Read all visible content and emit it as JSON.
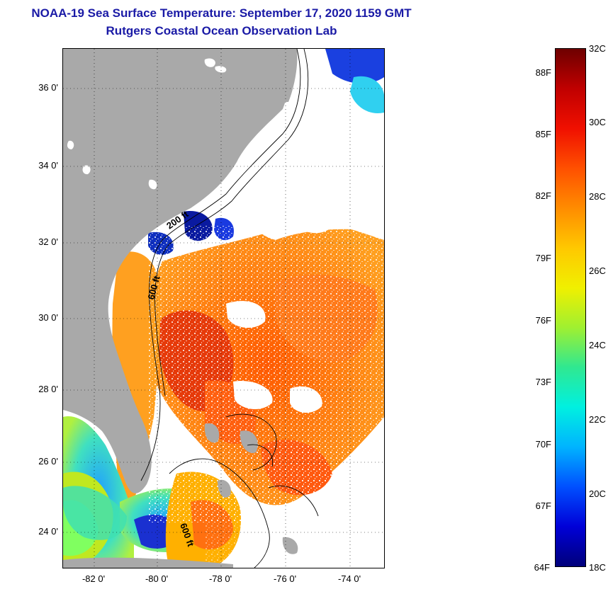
{
  "header": {
    "title": "NOAA-19 Sea Surface Temperature:  September 17, 2020 1159 GMT",
    "subtitle": "Rutgers Coastal Ocean Observation Lab"
  },
  "map": {
    "lat_labels": [
      "36 0'",
      "34 0'",
      "32 0'",
      "30 0'",
      "28 0'",
      "26 0'",
      "24 0'"
    ],
    "lon_labels": [
      "-82 0'",
      "-80 0'",
      "-78 0'",
      "-76 0'",
      "-74 0'"
    ],
    "contour_labels": [
      "200 ft",
      "600 ft",
      "600 ft"
    ],
    "land_color": "#a9a9a9",
    "grid": "dotted"
  },
  "colorbar": {
    "fahrenheit_labels": [
      "88F",
      "85F",
      "82F",
      "79F",
      "76F",
      "73F",
      "70F",
      "67F",
      "64F"
    ],
    "celsius_labels": [
      "32C",
      "30C",
      "28C",
      "26C",
      "24C",
      "22C",
      "20C",
      "18C"
    ],
    "range_celsius": [
      18,
      32
    ],
    "colors": [
      "#00007a",
      "#0000d8",
      "#0050ff",
      "#00b4ff",
      "#00f0e0",
      "#30e890",
      "#a0f030",
      "#f0f000",
      "#ffc800",
      "#ff8c00",
      "#ff5000",
      "#f01000",
      "#c00000",
      "#6e0000"
    ]
  }
}
